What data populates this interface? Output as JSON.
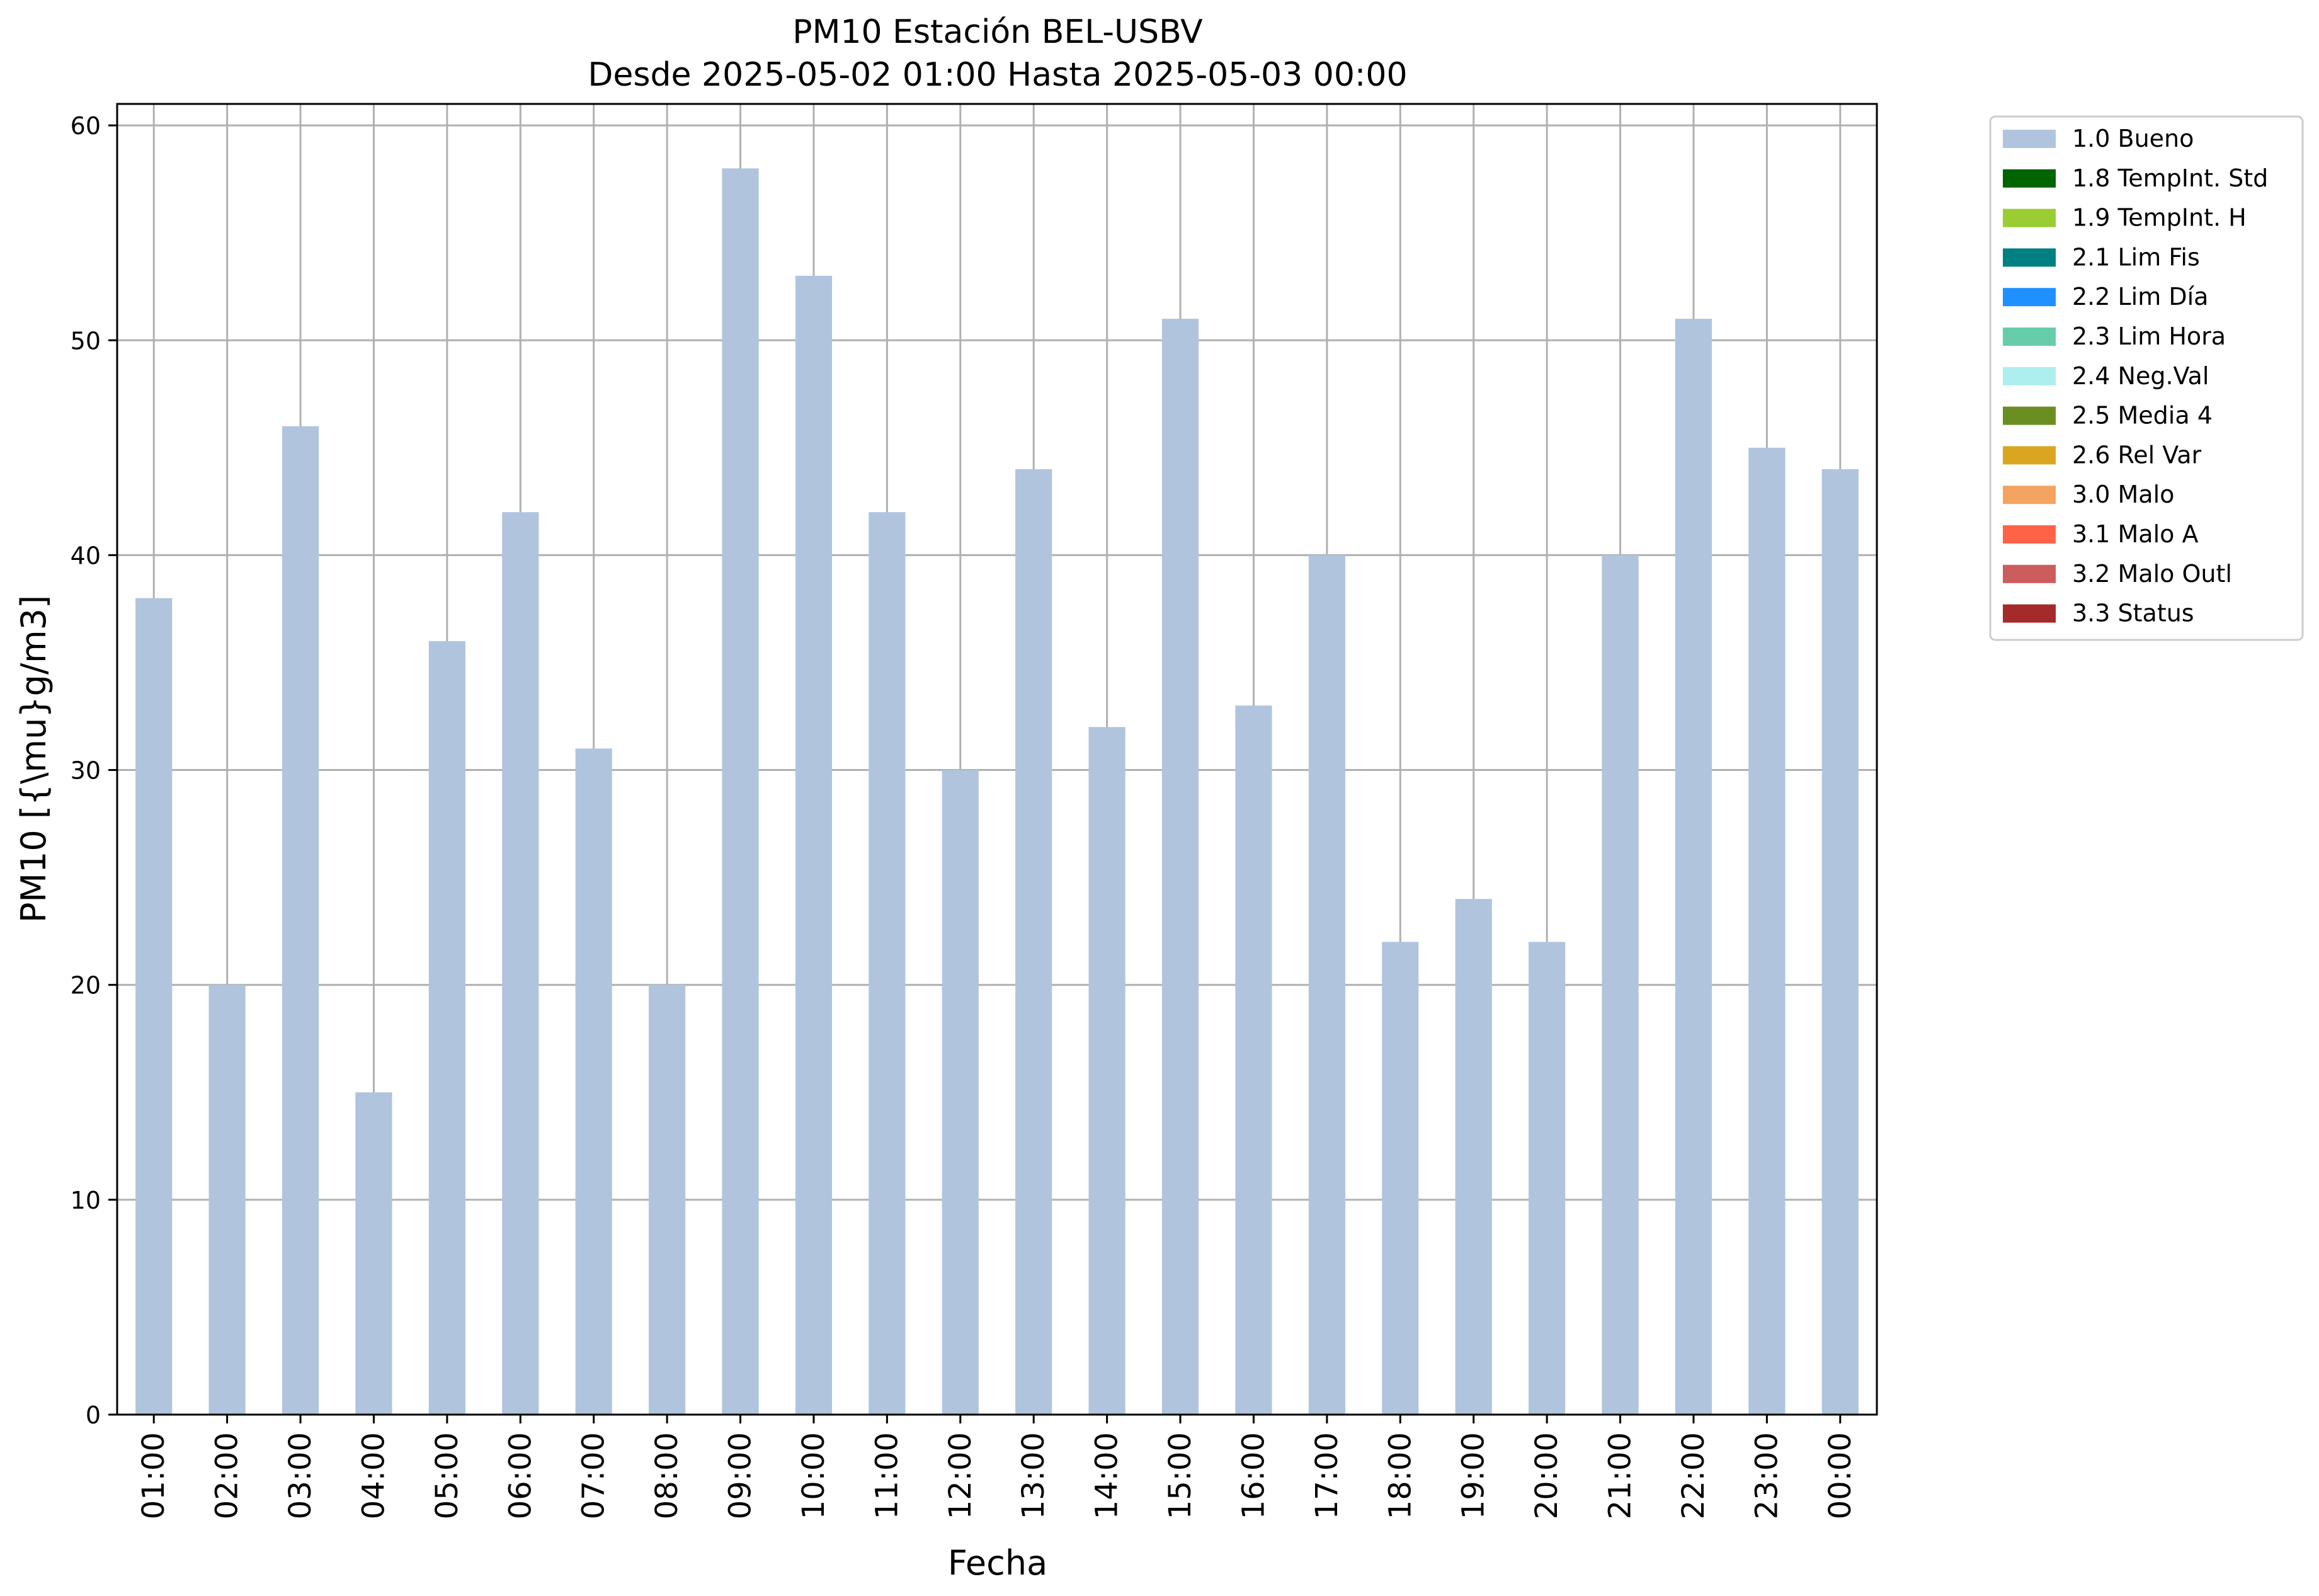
{
  "chart_data": {
    "type": "bar",
    "title": "PM10 Estación BEL-USBV",
    "subtitle": "Desde 2025-05-02 01:00 Hasta 2025-05-03 00:00",
    "xlabel": "Fecha",
    "ylabel": "PM10 [{\\mu}g/m3]",
    "ylim": [
      0,
      61
    ],
    "yticks": [
      0,
      10,
      20,
      30,
      40,
      50,
      60
    ],
    "grid": true,
    "legend_position": "outside-top-right",
    "categories": [
      "01:00",
      "02:00",
      "03:00",
      "04:00",
      "05:00",
      "06:00",
      "07:00",
      "08:00",
      "09:00",
      "10:00",
      "11:00",
      "12:00",
      "13:00",
      "14:00",
      "15:00",
      "16:00",
      "17:00",
      "18:00",
      "19:00",
      "20:00",
      "21:00",
      "22:00",
      "23:00",
      "00:00"
    ],
    "series": [
      {
        "name": "1.0 Bueno",
        "color": "#b0c4de",
        "values": [
          38,
          20,
          46,
          15,
          36,
          42,
          31,
          20,
          58,
          53,
          42,
          30,
          44,
          32,
          51,
          33,
          40,
          22,
          24,
          22,
          40,
          51,
          45,
          44
        ]
      }
    ],
    "legend": [
      {
        "label": "1.0 Bueno",
        "color": "#b0c4de"
      },
      {
        "label": "1.8 TempInt. Std",
        "color": "#006400"
      },
      {
        "label": "1.9 TempInt. H",
        "color": "#9acd32"
      },
      {
        "label": "2.1 Lim Fis",
        "color": "#008080"
      },
      {
        "label": "2.2 Lim Día",
        "color": "#1e90ff"
      },
      {
        "label": "2.3 Lim Hora",
        "color": "#66cdaa"
      },
      {
        "label": "2.4 Neg.Val",
        "color": "#afeeee"
      },
      {
        "label": "2.5 Media 4",
        "color": "#6b8e23"
      },
      {
        "label": "2.6 Rel Var",
        "color": "#daa520"
      },
      {
        "label": "3.0 Malo",
        "color": "#f4a460"
      },
      {
        "label": "3.1 Malo A",
        "color": "#ff6347"
      },
      {
        "label": "3.2 Malo Outl",
        "color": "#cd5c5c"
      },
      {
        "label": "3.3 Status",
        "color": "#a52a2a"
      }
    ]
  }
}
